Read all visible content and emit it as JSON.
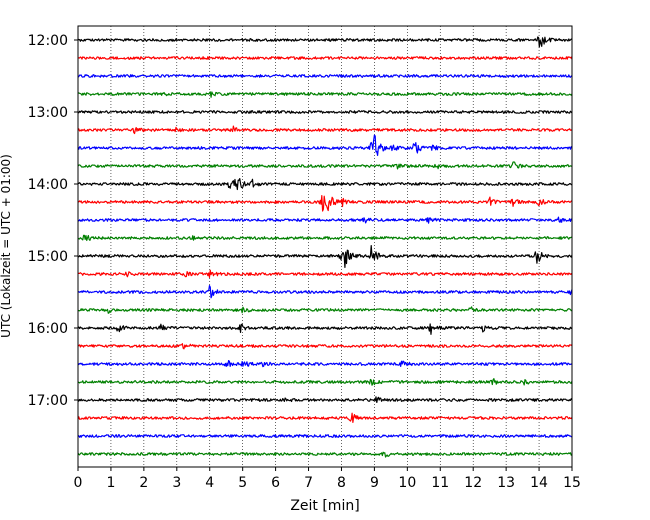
{
  "chart_data": {
    "type": "line",
    "title": "",
    "xlabel": "Zeit  [min]",
    "ylabel": "UTC (Lokalzeit = UTC + 01:00)",
    "xlim": [
      0,
      15
    ],
    "x_ticks": [
      0,
      1,
      2,
      3,
      4,
      5,
      6,
      7,
      8,
      9,
      10,
      11,
      12,
      13,
      14,
      15
    ],
    "y_ticks": [
      "12:00",
      "13:00",
      "14:00",
      "15:00",
      "16:00",
      "17:00"
    ],
    "grid": "vertical dotted at each minute",
    "trace_interval_min": 15,
    "trace_colors": [
      "#000000",
      "#ff0000",
      "#0000ff",
      "#008000"
    ],
    "traces": [
      {
        "start": "12:00",
        "color": "#000000",
        "events": [
          [
            14.0,
            10
          ]
        ]
      },
      {
        "start": "12:15",
        "color": "#ff0000",
        "events": []
      },
      {
        "start": "12:30",
        "color": "#0000ff",
        "events": []
      },
      {
        "start": "12:45",
        "color": "#008000",
        "events": [
          [
            2.6,
            3
          ],
          [
            4.0,
            3
          ]
        ]
      },
      {
        "start": "13:00",
        "color": "#000000",
        "events": []
      },
      {
        "start": "13:15",
        "color": "#ff0000",
        "events": [
          [
            1.7,
            3
          ],
          [
            2.9,
            3
          ],
          [
            4.7,
            3
          ]
        ]
      },
      {
        "start": "13:30",
        "color": "#0000ff",
        "events": [
          [
            9.0,
            12
          ],
          [
            8.9,
            6
          ],
          [
            9.5,
            5
          ],
          [
            10.2,
            9
          ],
          [
            10.7,
            4
          ]
        ]
      },
      {
        "start": "13:45",
        "color": "#008000",
        "events": [
          [
            9.7,
            3
          ],
          [
            10.9,
            3
          ],
          [
            13.2,
            4
          ]
        ]
      },
      {
        "start": "14:00",
        "color": "#000000",
        "events": [
          [
            4.6,
            6
          ],
          [
            4.8,
            10
          ],
          [
            5.3,
            4
          ]
        ]
      },
      {
        "start": "14:15",
        "color": "#ff0000",
        "events": [
          [
            7.4,
            10
          ],
          [
            7.6,
            8
          ],
          [
            8.0,
            4
          ],
          [
            12.5,
            4
          ],
          [
            13.2,
            4
          ],
          [
            14.0,
            4
          ]
        ]
      },
      {
        "start": "14:30",
        "color": "#0000ff",
        "events": [
          [
            8.7,
            3
          ],
          [
            10.6,
            3
          ],
          [
            14.6,
            3
          ]
        ]
      },
      {
        "start": "14:45",
        "color": "#008000",
        "events": [
          [
            0.2,
            4
          ],
          [
            3.5,
            3
          ]
        ]
      },
      {
        "start": "15:00",
        "color": "#000000",
        "events": [
          [
            7.9,
            6
          ],
          [
            8.1,
            10
          ],
          [
            8.9,
            10
          ],
          [
            13.9,
            10
          ]
        ]
      },
      {
        "start": "15:15",
        "color": "#ff0000",
        "events": [
          [
            1.5,
            3
          ],
          [
            3.2,
            3
          ],
          [
            4.0,
            3
          ]
        ]
      },
      {
        "start": "15:30",
        "color": "#0000ff",
        "events": [
          [
            4.0,
            7
          ],
          [
            14.9,
            4
          ]
        ]
      },
      {
        "start": "15:45",
        "color": "#008000",
        "events": [
          [
            0.9,
            3
          ],
          [
            5.0,
            3
          ],
          [
            11.9,
            3
          ]
        ]
      },
      {
        "start": "16:00",
        "color": "#000000",
        "events": [
          [
            1.2,
            4
          ],
          [
            2.5,
            4
          ],
          [
            4.9,
            5
          ],
          [
            10.7,
            6
          ],
          [
            12.3,
            4
          ]
        ]
      },
      {
        "start": "16:15",
        "color": "#ff0000",
        "events": [
          [
            3.2,
            3
          ]
        ]
      },
      {
        "start": "16:30",
        "color": "#0000ff",
        "events": [
          [
            4.5,
            4
          ],
          [
            5.0,
            4
          ],
          [
            5.6,
            3
          ],
          [
            9.8,
            3
          ]
        ]
      },
      {
        "start": "16:45",
        "color": "#008000",
        "events": [
          [
            8.9,
            3
          ],
          [
            12.6,
            3
          ],
          [
            13.5,
            3
          ]
        ]
      },
      {
        "start": "17:00",
        "color": "#000000",
        "events": [
          [
            6.2,
            3
          ],
          [
            9.0,
            4
          ]
        ]
      },
      {
        "start": "17:15",
        "color": "#ff0000",
        "events": [
          [
            8.3,
            5
          ]
        ]
      },
      {
        "start": "17:30",
        "color": "#0000ff",
        "events": []
      },
      {
        "start": "17:45",
        "color": "#008000",
        "events": [
          [
            9.3,
            3
          ]
        ]
      }
    ]
  }
}
